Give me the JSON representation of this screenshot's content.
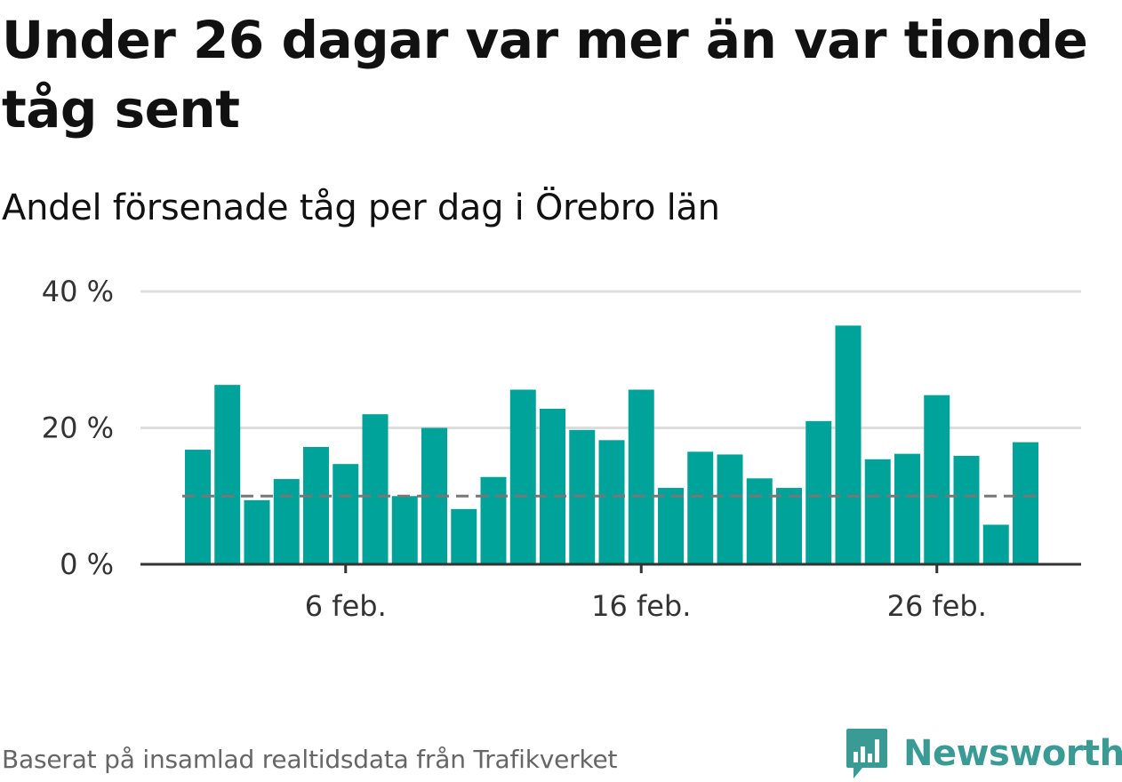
{
  "title": "Under 26 dagar var mer än var tionde tåg sent",
  "subtitle": "Andel försenade tåg per dag i Örebro län",
  "footer": "Baserat på insamlad realtidsdata från Trafikverket",
  "brand": {
    "name": "Newsworthy",
    "icon": "newsworthy-logo-icon",
    "color": "#3a9a94"
  },
  "colors": {
    "bar": "#00a39a",
    "grid": "#dddddd",
    "baseline": "#333333",
    "reference_line": "#777777"
  },
  "chart_data": {
    "type": "bar",
    "title": "Andel försenade tåg per dag i Örebro län",
    "xlabel": "",
    "ylabel": "",
    "x": [
      "2024-02-01",
      "2024-02-02",
      "2024-02-03",
      "2024-02-04",
      "2024-02-05",
      "2024-02-06",
      "2024-02-07",
      "2024-02-08",
      "2024-02-09",
      "2024-02-10",
      "2024-02-11",
      "2024-02-12",
      "2024-02-13",
      "2024-02-14",
      "2024-02-15",
      "2024-02-16",
      "2024-02-17",
      "2024-02-18",
      "2024-02-19",
      "2024-02-20",
      "2024-02-21",
      "2024-02-22",
      "2024-02-23",
      "2024-02-24",
      "2024-02-25",
      "2024-02-26",
      "2024-02-27",
      "2024-02-28",
      "2024-02-29"
    ],
    "values": [
      16.8,
      26.3,
      9.4,
      12.5,
      17.2,
      14.7,
      22.0,
      10.0,
      20.0,
      8.1,
      12.8,
      25.6,
      22.8,
      19.7,
      18.2,
      25.6,
      11.2,
      16.5,
      16.1,
      12.6,
      11.2,
      21.0,
      35.0,
      15.4,
      16.2,
      24.8,
      15.9,
      5.8,
      17.9
    ],
    "x_ticks": [
      "6 feb.",
      "16 feb.",
      "26 feb."
    ],
    "y_ticks": [
      "0 %",
      "20 %",
      "40 %"
    ],
    "ylim": [
      0,
      40
    ],
    "y_unit": "%",
    "reference_line": {
      "value": 10,
      "style": "dashed"
    },
    "grid": true,
    "legend": "none"
  }
}
